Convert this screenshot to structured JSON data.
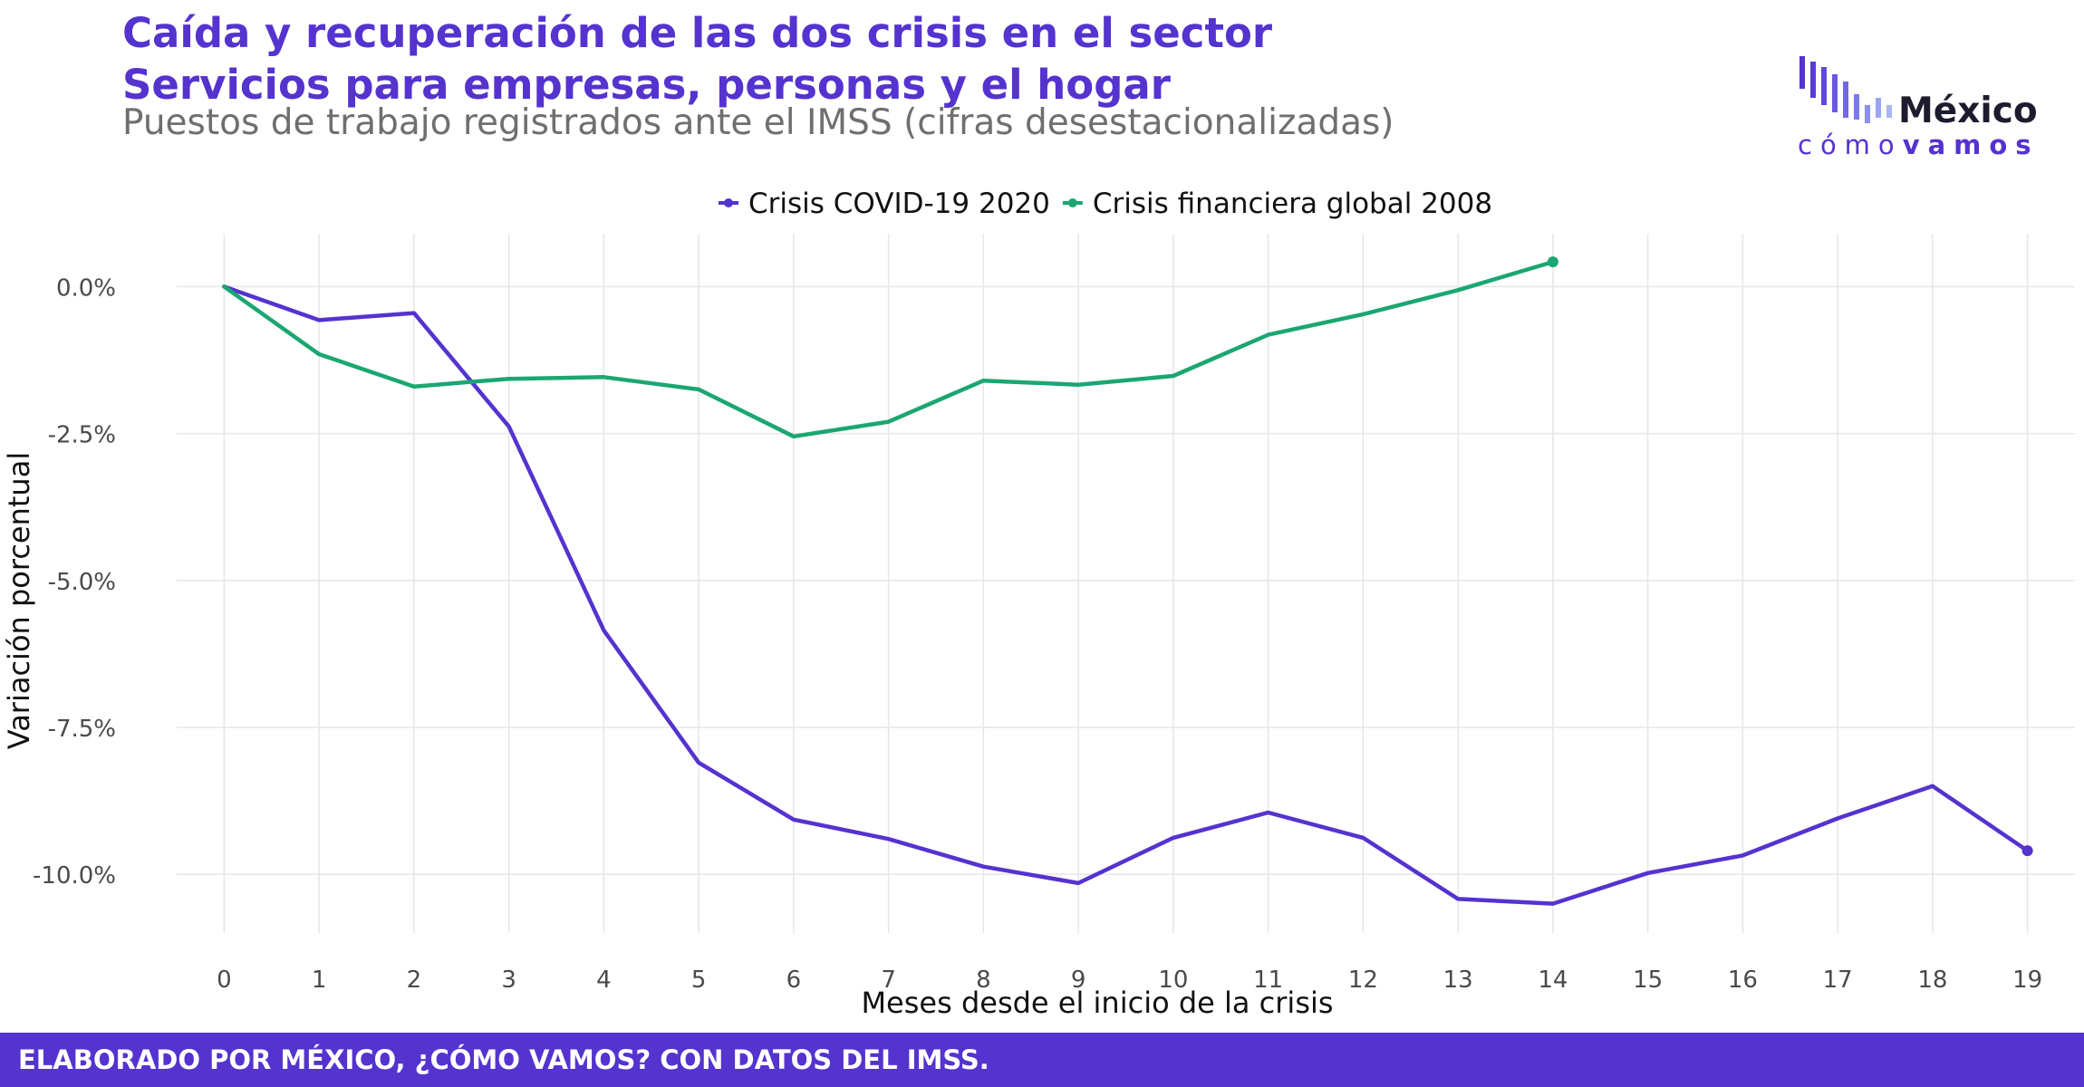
{
  "header": {
    "title_line1": "Caída y recuperación de las dos crisis en el sector",
    "title_line2": "Servicios para empresas, personas y el hogar",
    "subtitle": "Puestos de trabajo registrados ante el IMSS (cifras desestacionalizadas)"
  },
  "logo": {
    "word": "México",
    "sub_light": "cómo",
    "sub_bold": "vamos",
    "color": "#5433CF"
  },
  "footer": {
    "text": "ELABORADO POR MÉXICO, ¿CÓMO VAMOS? CON DATOS DEL IMSS.",
    "background": "#5433CF"
  },
  "chart_data": {
    "type": "line",
    "xlabel": "Meses desde el inicio de la crisis",
    "ylabel": "Variación porcentual",
    "xlim": [
      0,
      19
    ],
    "ylim": [
      -11.0,
      0.9
    ],
    "x_ticks": [
      0,
      1,
      2,
      3,
      4,
      5,
      6,
      7,
      8,
      9,
      10,
      11,
      12,
      13,
      14,
      15,
      16,
      17,
      18,
      19
    ],
    "y_ticks": [
      0.0,
      -2.5,
      -5.0,
      -7.5,
      -10.0
    ],
    "y_tick_labels": [
      "0.0%",
      "-2.5%",
      "-5.0%",
      "-7.5%",
      "-10.0%"
    ],
    "grid": true,
    "legend_position": "top-center",
    "series": [
      {
        "name": "Crisis COVID-19 2020",
        "color": "#5433CF",
        "x": [
          0,
          1,
          2,
          3,
          4,
          5,
          6,
          7,
          8,
          9,
          10,
          11,
          12,
          13,
          14,
          15,
          16,
          17,
          18,
          19
        ],
        "values": [
          0.0,
          -0.57,
          -0.45,
          -2.38,
          -5.85,
          -8.1,
          -9.07,
          -9.4,
          -9.87,
          -10.15,
          -9.38,
          -8.95,
          -9.38,
          -10.42,
          -10.5,
          -9.98,
          -9.68,
          -9.05,
          -8.5,
          -9.6
        ]
      },
      {
        "name": "Crisis financiera global 2008",
        "color": "#1BA672",
        "x": [
          0,
          1,
          2,
          3,
          4,
          5,
          6,
          7,
          8,
          9,
          10,
          11,
          12,
          13,
          14
        ],
        "values": [
          0.0,
          -1.15,
          -1.7,
          -1.57,
          -1.54,
          -1.75,
          -2.55,
          -2.3,
          -1.6,
          -1.67,
          -1.52,
          -0.82,
          -0.47,
          -0.06,
          0.42
        ]
      }
    ]
  }
}
